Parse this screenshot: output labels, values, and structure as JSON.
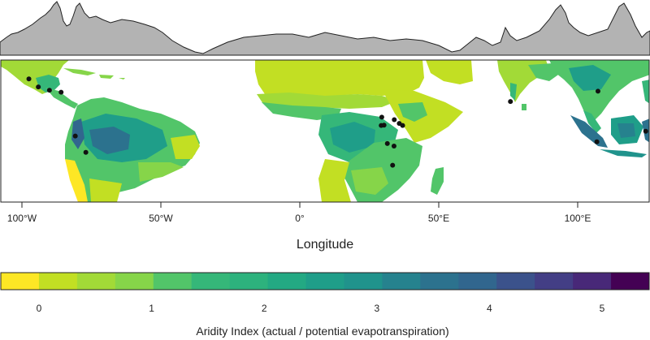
{
  "map": {
    "x_axis": {
      "title": "Longitude",
      "ticks": [
        {
          "value": -100,
          "label": "100°W"
        },
        {
          "value": -50,
          "label": "50°W"
        },
        {
          "value": 0,
          "label": "0°"
        },
        {
          "value": 50,
          "label": "50°E"
        },
        {
          "value": 100,
          "label": "100°E"
        }
      ]
    },
    "ocean_color": "#ffffff"
  },
  "profile": {
    "fill_color": "#b3b3b3",
    "stroke_color": "#222222"
  },
  "colorbar": {
    "title": "Aridity Index (actual / potential evapotranspiration)",
    "ticks": [
      {
        "value": 0,
        "label": "0"
      },
      {
        "value": 1,
        "label": "1"
      },
      {
        "value": 2,
        "label": "2"
      },
      {
        "value": 3,
        "label": "3"
      },
      {
        "value": 4,
        "label": "4"
      },
      {
        "value": 5,
        "label": "5"
      }
    ],
    "bins": [
      "#fde725",
      "#c2df23",
      "#a2da37",
      "#86d549",
      "#52c569",
      "#35b779",
      "#2db27d",
      "#23a983",
      "#1f9e89",
      "#20938c",
      "#26828e",
      "#2c728e",
      "#31668e",
      "#3b528b",
      "#433e85",
      "#482878",
      "#440154"
    ]
  },
  "sites": [
    {
      "lon": -97.5,
      "lat": 19.6
    },
    {
      "lon": -94.1,
      "lat": 16.4
    },
    {
      "lon": -90.1,
      "lat": 15.1
    },
    {
      "lon": -85.9,
      "lat": 14.3
    },
    {
      "lon": -80.8,
      "lat": -3.1
    },
    {
      "lon": -77.0,
      "lat": -9.6
    },
    {
      "lon": 29.5,
      "lat": 4.4
    },
    {
      "lon": 29.3,
      "lat": 1.1
    },
    {
      "lon": 30.3,
      "lat": 1.2
    },
    {
      "lon": 34.0,
      "lat": 3.4
    },
    {
      "lon": 35.8,
      "lat": 1.9
    },
    {
      "lon": 37.0,
      "lat": 1.1
    },
    {
      "lon": 31.5,
      "lat": -6.1
    },
    {
      "lon": 33.9,
      "lat": -7.1
    },
    {
      "lon": 33.4,
      "lat": -14.7
    },
    {
      "lon": 75.8,
      "lat": 10.6
    },
    {
      "lon": 107.3,
      "lat": 14.7
    },
    {
      "lon": 106.9,
      "lat": -5.4
    },
    {
      "lon": 124.5,
      "lat": -1.2
    }
  ]
}
